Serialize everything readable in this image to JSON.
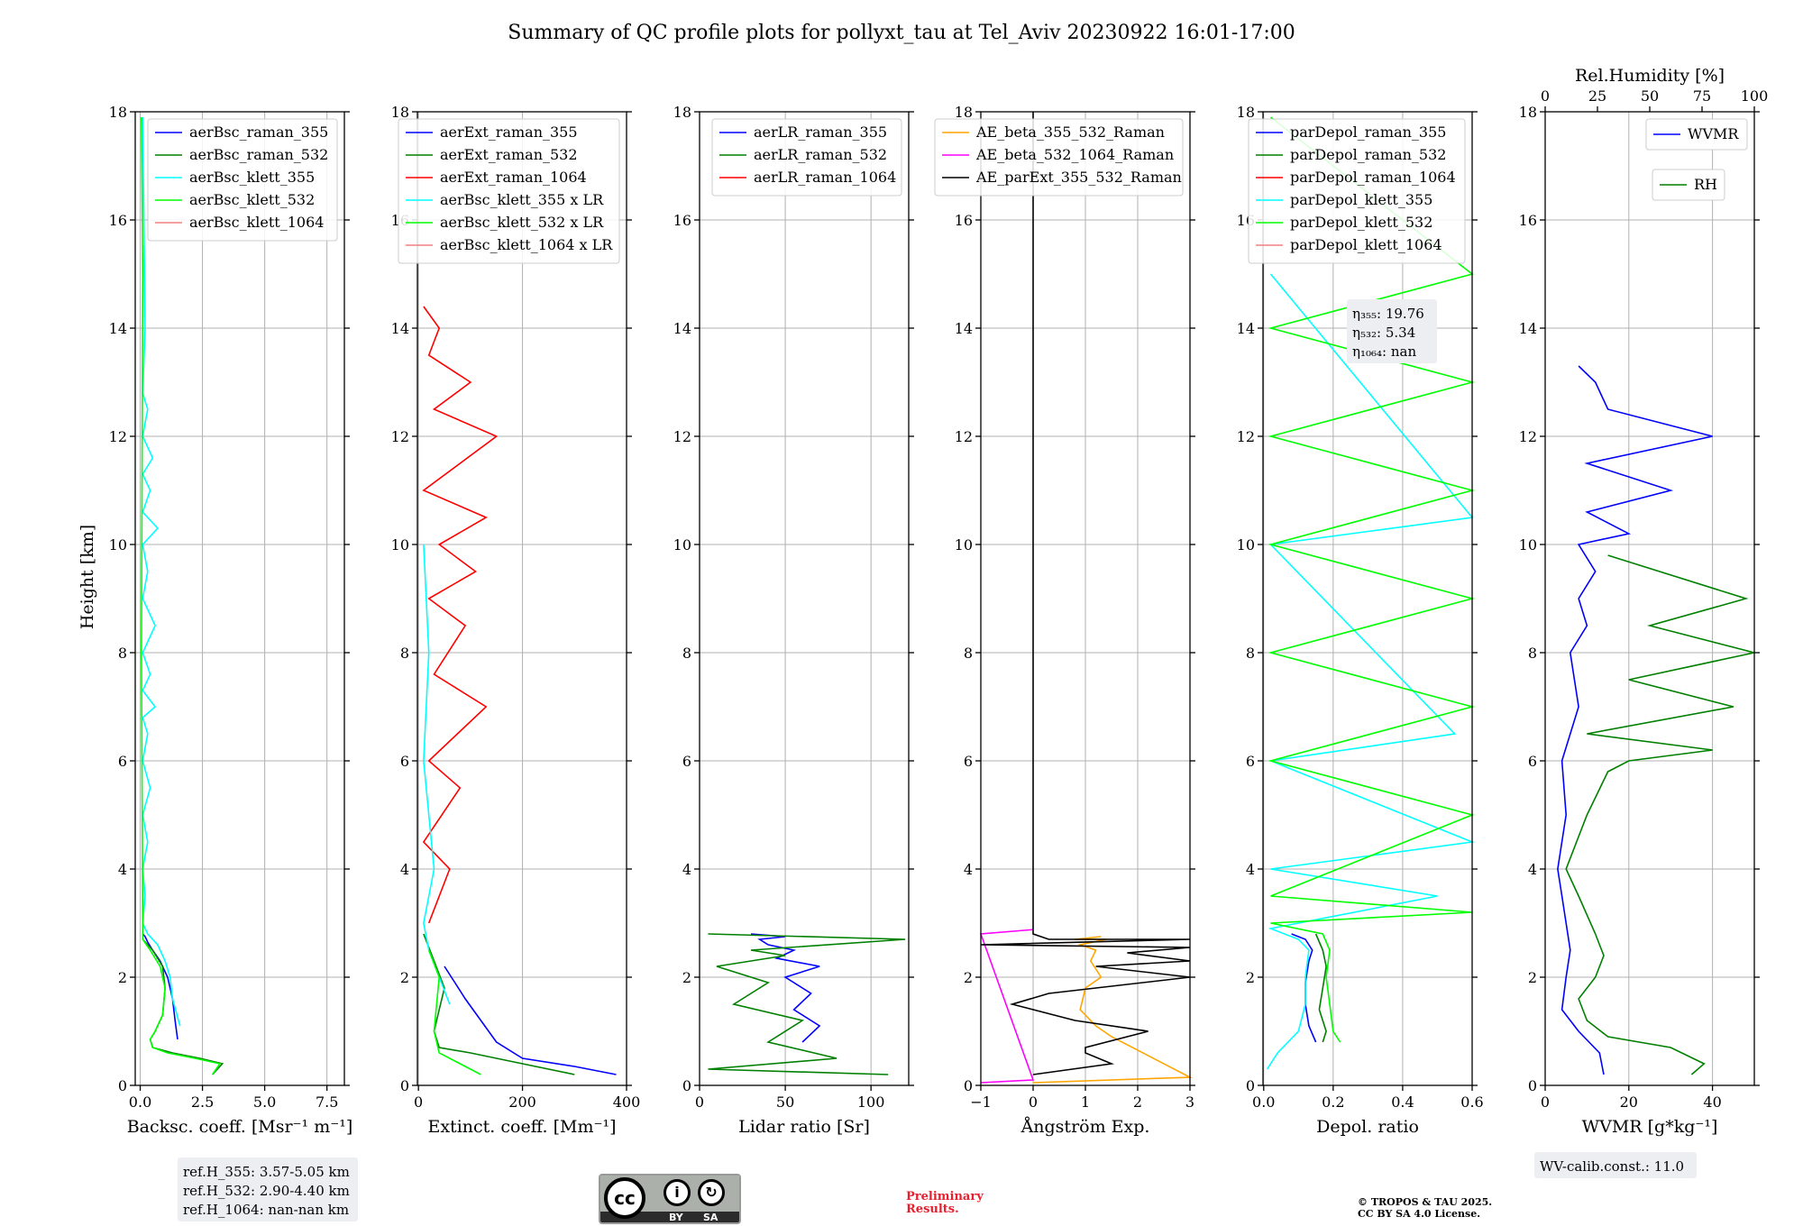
{
  "title": "Summary of QC profile plots for pollyxt_tau at Tel_Aviv 20230922 16:01-17:00",
  "ylabel": "Height [km]",
  "chart_data": [
    {
      "type": "line",
      "xlabel": "Backsc. coeff. [Msr⁻¹ m⁻¹]",
      "xlim": [
        -0.2,
        8.2
      ],
      "xticks": [
        0,
        2.5,
        5,
        7.5
      ],
      "xticklabels": [
        "0.0",
        "2.5",
        "5.0",
        "7.5"
      ],
      "ylim": [
        0,
        18
      ],
      "grid": true,
      "legend": "top-right",
      "series": [
        {
          "name": "aerBsc_raman_355",
          "color": "#0000ff",
          "x": [
            1.5,
            1.4,
            1.3,
            1.1,
            0.8,
            0.5,
            0.3,
            0.2,
            0.1
          ],
          "y": [
            0.85,
            1.2,
            1.6,
            2.0,
            2.3,
            2.5,
            2.65,
            2.75,
            2.8
          ]
        },
        {
          "name": "aerBsc_raman_532",
          "color": "#008000",
          "x": [
            2.9,
            3.3,
            2.4,
            1.3,
            0.5,
            0.4,
            0.6,
            0.9,
            1.0,
            0.9,
            0.5,
            0.1
          ],
          "y": [
            0.2,
            0.4,
            0.5,
            0.6,
            0.7,
            0.85,
            1.0,
            1.3,
            1.8,
            2.2,
            2.5,
            2.7
          ]
        },
        {
          "name": "aerBsc_klett_355",
          "color": "#00ffff",
          "x": [
            1.6,
            1.3,
            1.2,
            1.0,
            0.7,
            0.3,
            0.1,
            0.2,
            0.1,
            0.3,
            0.1,
            0.4,
            0.1,
            0.3,
            0.1,
            0.6,
            0.1,
            0.4,
            0.1,
            0.6,
            0.1,
            0.3,
            0.1,
            0.7,
            0.1,
            0.4,
            0.1,
            0.5,
            0.1,
            0.3,
            0.1,
            0.2,
            0.1
          ],
          "y": [
            1.1,
            1.6,
            2.0,
            2.3,
            2.6,
            2.8,
            3.0,
            3.5,
            4.0,
            4.5,
            5.0,
            5.5,
            6.0,
            6.5,
            6.8,
            7.0,
            7.3,
            7.6,
            8.0,
            8.5,
            9.0,
            9.5,
            10.0,
            10.3,
            10.6,
            11.0,
            11.3,
            11.6,
            12.0,
            12.5,
            12.8,
            14.0,
            17.9
          ]
        },
        {
          "name": "aerBsc_klett_532",
          "color": "#00ff00",
          "x": [
            2.9,
            3.2,
            2.2,
            1.1,
            0.5,
            0.4,
            0.6,
            0.9,
            1.0,
            0.8,
            0.4,
            0.1,
            0.1,
            0.05,
            0.1,
            0.05
          ],
          "y": [
            0.2,
            0.4,
            0.5,
            0.6,
            0.7,
            0.85,
            1.0,
            1.3,
            1.8,
            2.2,
            2.5,
            2.7,
            3.0,
            8.0,
            15.0,
            17.9
          ]
        },
        {
          "name": "aerBsc_klett_1064",
          "color": "#f08080",
          "x": [],
          "y": []
        }
      ],
      "annotation": [
        "ref.H_355: 3.57-5.05 km",
        "ref.H_532: 2.90-4.40 km",
        "ref.H_1064: nan-nan km"
      ]
    },
    {
      "type": "line",
      "xlabel": "Extinct. coeff. [Mm⁻¹]",
      "xlim": [
        -2,
        400
      ],
      "xticks": [
        0,
        200,
        400
      ],
      "xticklabels": [
        "0",
        "200",
        "400"
      ],
      "ylim": [
        0,
        18
      ],
      "grid": true,
      "legend": "top-right",
      "series": [
        {
          "name": "aerExt_raman_355",
          "color": "#0000ff",
          "x": [
            380,
            300,
            200,
            150,
            120,
            90,
            70,
            50
          ],
          "y": [
            0.2,
            0.35,
            0.5,
            0.8,
            1.2,
            1.6,
            1.9,
            2.2
          ]
        },
        {
          "name": "aerExt_raman_532",
          "color": "#008000",
          "x": [
            300,
            200,
            100,
            40,
            30,
            40,
            50,
            30,
            10
          ],
          "y": [
            0.2,
            0.4,
            0.6,
            0.7,
            1.0,
            1.4,
            1.8,
            2.3,
            2.8
          ]
        },
        {
          "name": "aerExt_raman_1064",
          "color": "#ff0000",
          "x": [
            20,
            60,
            10,
            80,
            20,
            130,
            30,
            90,
            20,
            110,
            40,
            130,
            10,
            150,
            30,
            100,
            20,
            40,
            10
          ],
          "y": [
            3.0,
            4.0,
            4.5,
            5.5,
            6.0,
            7.0,
            7.6,
            8.5,
            9.0,
            9.5,
            10.0,
            10.5,
            11.0,
            12.0,
            12.5,
            13.0,
            13.5,
            14.0,
            14.4
          ]
        },
        {
          "name": "aerBsc_klett_355 x LR",
          "color": "#00ffff",
          "x": [
            60,
            40,
            20,
            10,
            30,
            10,
            20,
            10
          ],
          "y": [
            1.5,
            2.0,
            2.5,
            3.0,
            4.0,
            6.0,
            8.0,
            10.0
          ]
        },
        {
          "name": "aerBsc_klett_532 x LR",
          "color": "#00ff00",
          "x": [
            120,
            80,
            40,
            30,
            40,
            20
          ],
          "y": [
            0.2,
            0.4,
            0.6,
            1.0,
            2.0,
            2.5
          ]
        },
        {
          "name": "aerBsc_klett_1064 x LR",
          "color": "#f08080",
          "x": [],
          "y": []
        }
      ]
    },
    {
      "type": "line",
      "xlabel": "Lidar ratio [Sr]",
      "xlim": [
        0,
        122
      ],
      "xticks": [
        0,
        50,
        100
      ],
      "xticklabels": [
        "0",
        "50",
        "100"
      ],
      "ylim": [
        0,
        18
      ],
      "grid": true,
      "legend": "top-right",
      "series": [
        {
          "name": "aerLR_raman_355",
          "color": "#0000ff",
          "x": [
            60,
            70,
            55,
            65,
            50,
            70,
            45,
            55,
            40,
            35,
            50,
            30
          ],
          "y": [
            0.8,
            1.1,
            1.4,
            1.7,
            2.0,
            2.2,
            2.35,
            2.5,
            2.6,
            2.7,
            2.75,
            2.8
          ]
        },
        {
          "name": "aerLR_raman_532",
          "color": "#008000",
          "x": [
            110,
            5,
            80,
            40,
            60,
            20,
            40,
            10,
            50,
            30,
            120,
            5
          ],
          "y": [
            0.2,
            0.3,
            0.5,
            0.8,
            1.2,
            1.5,
            1.9,
            2.2,
            2.4,
            2.5,
            2.7,
            2.8
          ]
        },
        {
          "name": "aerLR_raman_1064",
          "color": "#ff0000",
          "x": [],
          "y": []
        }
      ]
    },
    {
      "type": "line",
      "xlabel": "Ångström Exp.",
      "xlim": [
        -1,
        3
      ],
      "xticks": [
        -1,
        0,
        1,
        2,
        3
      ],
      "xticklabels": [
        "−1",
        "0",
        "1",
        "2",
        "3"
      ],
      "ylim": [
        0,
        18
      ],
      "grid": true,
      "legend": "top-right",
      "series": [
        {
          "name": "AE_beta_355_532_Raman",
          "color": "#ffa500",
          "x": [
            0,
            3.0,
            1.5,
            1.2,
            0.9,
            1.0,
            1.3,
            1.1,
            1.2,
            0.9,
            1.4,
            0.8,
            1.3
          ],
          "y": [
            0.05,
            0.15,
            0.9,
            1.1,
            1.4,
            1.8,
            2.0,
            2.3,
            2.5,
            2.6,
            2.7,
            2.7,
            2.75
          ]
        },
        {
          "name": "AE_beta_532_1064_Raman",
          "color": "#ff00ff",
          "x": [
            -1,
            0,
            -1,
            0
          ],
          "y": [
            0.05,
            0.1,
            2.8,
            2.88
          ]
        },
        {
          "name": "AE_parExt_355_532_Raman",
          "color": "#000000",
          "x": [
            0,
            1.5,
            1.0,
            1.0,
            2.2,
            0.8,
            -0.4,
            0.3,
            3.0,
            1.2,
            3.0,
            1.8,
            3.0,
            -1.0,
            3.0,
            0.3,
            0.0,
            0.0
          ],
          "y": [
            0.2,
            0.4,
            0.6,
            0.7,
            1.0,
            1.2,
            1.5,
            1.7,
            2.0,
            2.2,
            2.3,
            2.45,
            2.55,
            2.6,
            2.7,
            2.7,
            2.8,
            18
          ]
        }
      ]
    },
    {
      "type": "line",
      "xlabel": "Depol. ratio",
      "xlim": [
        -0.002,
        0.6
      ],
      "xticks": [
        0,
        0.2,
        0.4,
        0.6
      ],
      "xticklabels": [
        "0.0",
        "0.2",
        "0.4",
        "0.6"
      ],
      "ylim": [
        0,
        18
      ],
      "grid": true,
      "legend": "top-right",
      "series": [
        {
          "name": "parDepol_raman_355",
          "color": "#0000ff",
          "x": [
            0.15,
            0.13,
            0.12,
            0.12,
            0.13,
            0.14,
            0.12,
            0.08
          ],
          "y": [
            0.8,
            1.1,
            1.5,
            1.9,
            2.3,
            2.5,
            2.7,
            2.8
          ]
        },
        {
          "name": "parDepol_raman_532",
          "color": "#008000",
          "x": [
            0.17,
            0.18,
            0.16,
            0.17,
            0.18,
            0.17,
            0.15
          ],
          "y": [
            0.8,
            1.0,
            1.4,
            1.8,
            2.2,
            2.5,
            2.8
          ]
        },
        {
          "name": "parDepol_raman_1064",
          "color": "#ff0000",
          "x": [],
          "y": []
        },
        {
          "name": "parDepol_klett_355",
          "color": "#00ffff",
          "x": [
            0.01,
            0.04,
            0.1,
            0.12,
            0.12,
            0.13,
            0.1,
            0.02,
            0.5,
            0.02,
            0.6,
            0.02,
            0.55,
            0.02,
            0.6,
            0.02
          ],
          "y": [
            0.3,
            0.6,
            1.0,
            1.5,
            2.0,
            2.5,
            2.7,
            2.9,
            3.5,
            4.0,
            4.5,
            6.0,
            6.5,
            10.0,
            10.5,
            15.0
          ]
        },
        {
          "name": "parDepol_klett_532",
          "color": "#00ff00",
          "x": [
            0.22,
            0.2,
            0.19,
            0.18,
            0.19,
            0.17,
            0.02,
            0.6,
            0.02,
            0.6,
            0.02,
            0.6,
            0.02,
            0.6,
            0.02,
            0.6,
            0.02,
            0.6,
            0.02,
            0.6,
            0.02
          ],
          "y": [
            0.8,
            1.0,
            1.5,
            2.0,
            2.5,
            2.8,
            3.0,
            3.2,
            3.5,
            5.0,
            6.0,
            7.0,
            8.0,
            9.0,
            10.0,
            11.0,
            12.0,
            13.0,
            14.0,
            15.0,
            17.9
          ]
        },
        {
          "name": "parDepol_klett_1064",
          "color": "#f08080",
          "x": [],
          "y": []
        }
      ],
      "annotation": [
        "η₃₅₅: 19.76",
        "η₅₃₂: 5.34",
        "η₁₀₆₄: nan"
      ]
    },
    {
      "type": "line",
      "xlabel": "WVMR [g*kg⁻¹]",
      "xlim": [
        0,
        50
      ],
      "xticks": [
        0,
        20,
        40
      ],
      "xticklabels": [
        "0",
        "20",
        "40"
      ],
      "ylim": [
        0,
        18
      ],
      "grid": true,
      "top_xlabel": "Rel.Humidity [%]",
      "top_xticks": [
        0,
        25,
        50,
        75,
        100
      ],
      "top_xticklabels": [
        "0",
        "25",
        "50",
        "75",
        "100"
      ],
      "series": [
        {
          "name": "WVMR",
          "color": "#0000ff",
          "x": [
            14,
            13,
            8,
            4,
            5,
            6,
            5,
            4,
            3,
            5,
            4,
            8,
            6,
            10,
            8,
            12,
            8,
            20,
            10,
            30,
            10,
            40,
            15,
            12,
            8
          ],
          "y": [
            0.2,
            0.6,
            1.0,
            1.4,
            2.0,
            2.5,
            3.0,
            3.5,
            4.0,
            5.0,
            6.0,
            7.0,
            8.0,
            8.5,
            9.0,
            9.5,
            10.0,
            10.2,
            10.6,
            11.0,
            11.5,
            12.0,
            12.5,
            13.0,
            13.3
          ]
        },
        {
          "name": "RH",
          "color": "#008000",
          "x": [
            35,
            38,
            30,
            15,
            10,
            8,
            12,
            14,
            13,
            12,
            8,
            5,
            10,
            15,
            20,
            40,
            10,
            45,
            20,
            50,
            25,
            48,
            15
          ],
          "y": [
            0.2,
            0.4,
            0.7,
            0.9,
            1.2,
            1.6,
            2.0,
            2.4,
            2.6,
            2.8,
            3.5,
            4.0,
            5.0,
            5.8,
            6.0,
            6.2,
            6.5,
            7.0,
            7.5,
            8.0,
            8.5,
            9.0,
            9.8
          ]
        }
      ],
      "annotation": [
        "WV-calib.const.: 11.0"
      ]
    }
  ],
  "logo": {
    "label_by": "BY",
    "label_sa": "SA",
    "cc": "cc"
  },
  "footer": {
    "preliminary_1": "Preliminary",
    "preliminary_2": "Results.",
    "copyright_1": "© TROPOS & TAU 2025.",
    "copyright_2": "CC BY SA 4.0 License."
  }
}
